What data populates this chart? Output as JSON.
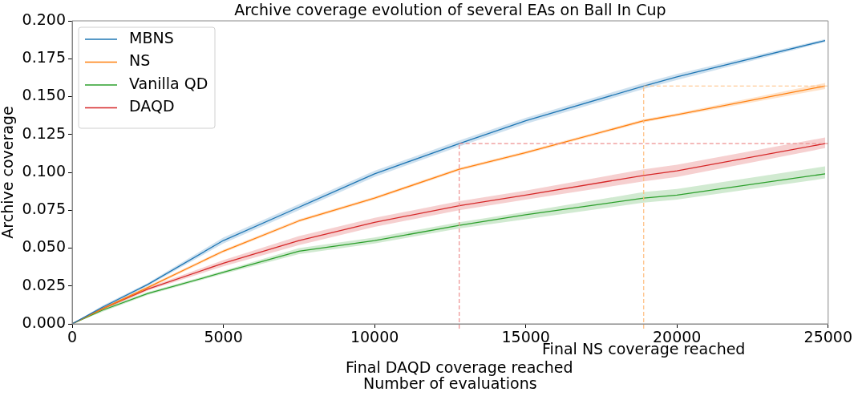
{
  "chart_data": {
    "type": "line",
    "title": "Archive coverage evolution of several EAs on Ball In Cup",
    "xlabel": "Number of evaluations",
    "ylabel": "Archive coverage",
    "x": [
      0,
      1000,
      2500,
      5000,
      7500,
      10000,
      12800,
      15000,
      18900,
      20000,
      24900
    ],
    "xlim": [
      0,
      25000
    ],
    "xticks": [
      0,
      5000,
      10000,
      15000,
      20000,
      25000
    ],
    "ylim": [
      0,
      0.2
    ],
    "yticks": [
      {
        "value": 0,
        "label": "0.000"
      },
      {
        "value": 0.025,
        "label": "0.025"
      },
      {
        "value": 0.05,
        "label": "0.050"
      },
      {
        "value": 0.075,
        "label": "0.075"
      },
      {
        "value": 0.1,
        "label": "0.100"
      },
      {
        "value": 0.125,
        "label": "0.125"
      },
      {
        "value": 0.15,
        "label": "0.150"
      },
      {
        "value": 0.175,
        "label": "0.175"
      },
      {
        "value": 0.2,
        "label": "0.200"
      }
    ],
    "grid": false,
    "legend": "top left",
    "marker": "none",
    "line_style": "solid",
    "series": [
      {
        "name": "MBNS",
        "color": "#1f77b4",
        "values": [
          0,
          0.011,
          0.026,
          0.055,
          0.077,
          0.099,
          0.119,
          0.134,
          0.157,
          0.163,
          0.187
        ],
        "lower": [
          0,
          0.01,
          0.025,
          0.053,
          0.075,
          0.097,
          0.117,
          0.132,
          0.155,
          0.161,
          0.186
        ],
        "upper": [
          0,
          0.012,
          0.027,
          0.057,
          0.079,
          0.101,
          0.121,
          0.136,
          0.159,
          0.165,
          0.188
        ]
      },
      {
        "name": "NS",
        "color": "#ff7f0e",
        "values": [
          0,
          0.01,
          0.024,
          0.048,
          0.068,
          0.083,
          0.102,
          0.113,
          0.134,
          0.138,
          0.157
        ],
        "lower": [
          0,
          0.009,
          0.023,
          0.047,
          0.067,
          0.082,
          0.101,
          0.112,
          0.133,
          0.137,
          0.155
        ],
        "upper": [
          0,
          0.011,
          0.025,
          0.049,
          0.069,
          0.084,
          0.103,
          0.114,
          0.135,
          0.139,
          0.159
        ]
      },
      {
        "name": "Vanilla QD",
        "color": "#2ca02c",
        "values": [
          0,
          0.009,
          0.02,
          0.034,
          0.048,
          0.055,
          0.065,
          0.072,
          0.083,
          0.085,
          0.099
        ],
        "lower": [
          0,
          0.008,
          0.019,
          0.033,
          0.046,
          0.053,
          0.063,
          0.069,
          0.08,
          0.082,
          0.096
        ],
        "upper": [
          0,
          0.01,
          0.021,
          0.035,
          0.05,
          0.057,
          0.067,
          0.074,
          0.087,
          0.089,
          0.104
        ]
      },
      {
        "name": "DAQD",
        "color": "#d62728",
        "values": [
          0,
          0.01,
          0.023,
          0.04,
          0.055,
          0.067,
          0.078,
          0.085,
          0.098,
          0.101,
          0.119
        ],
        "lower": [
          0,
          0.009,
          0.022,
          0.038,
          0.052,
          0.064,
          0.075,
          0.082,
          0.094,
          0.097,
          0.116
        ],
        "upper": [
          0,
          0.011,
          0.024,
          0.042,
          0.058,
          0.07,
          0.081,
          0.088,
          0.102,
          0.105,
          0.123
        ]
      }
    ],
    "ref_lines": [
      {
        "axis": "x",
        "value": 18900,
        "label": "Final NS coverage reached",
        "color": "#ffbf80",
        "line_style": "dashed"
      },
      {
        "axis": "x",
        "value": 12800,
        "label": "Final DAQD coverage reached",
        "color": "#ee9090",
        "line_style": "dashed"
      },
      {
        "axis": "y",
        "value": 0.157,
        "color": "#ffbf80",
        "line_style": "dashed"
      },
      {
        "axis": "y",
        "value": 0.119,
        "color": "#ee9090",
        "line_style": "dashed"
      }
    ]
  }
}
